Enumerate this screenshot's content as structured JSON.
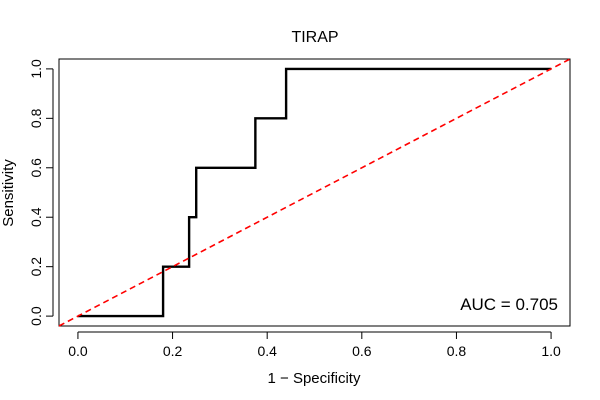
{
  "chart_data": {
    "type": "line",
    "title": "TIRAP",
    "xlabel": "1 − Specificity",
    "ylabel": "Sensitivity",
    "xlim": [
      -0.04,
      1.04
    ],
    "ylim": [
      -0.04,
      1.04
    ],
    "xticks": [
      0.0,
      0.2,
      0.4,
      0.6,
      0.8,
      1.0
    ],
    "xtick_labels": [
      "0.0",
      "0.2",
      "0.4",
      "0.6",
      "0.8",
      "1.0"
    ],
    "yticks": [
      0.0,
      0.2,
      0.4,
      0.6,
      0.8,
      1.0
    ],
    "ytick_labels": [
      "0.0",
      "0.2",
      "0.4",
      "0.6",
      "0.8",
      "1.0"
    ],
    "series": [
      {
        "name": "ROC",
        "color": "#000000",
        "style": "solid",
        "x": [
          0.0,
          0.18,
          0.18,
          0.19,
          0.19,
          0.235,
          0.235,
          0.245,
          0.245,
          0.25,
          0.25,
          0.375,
          0.375,
          0.44,
          0.44,
          1.0
        ],
        "y": [
          0.0,
          0.0,
          0.2,
          0.2,
          0.2,
          0.2,
          0.4,
          0.4,
          0.4,
          0.4,
          0.6,
          0.6,
          0.8,
          0.8,
          1.0,
          1.0
        ]
      },
      {
        "name": "Reference",
        "color": "#ff0000",
        "style": "dashed",
        "x": [
          -0.04,
          1.04
        ],
        "y": [
          -0.04,
          1.04
        ]
      }
    ],
    "annotation": {
      "text": "AUC = 0.705"
    },
    "grid": false
  }
}
